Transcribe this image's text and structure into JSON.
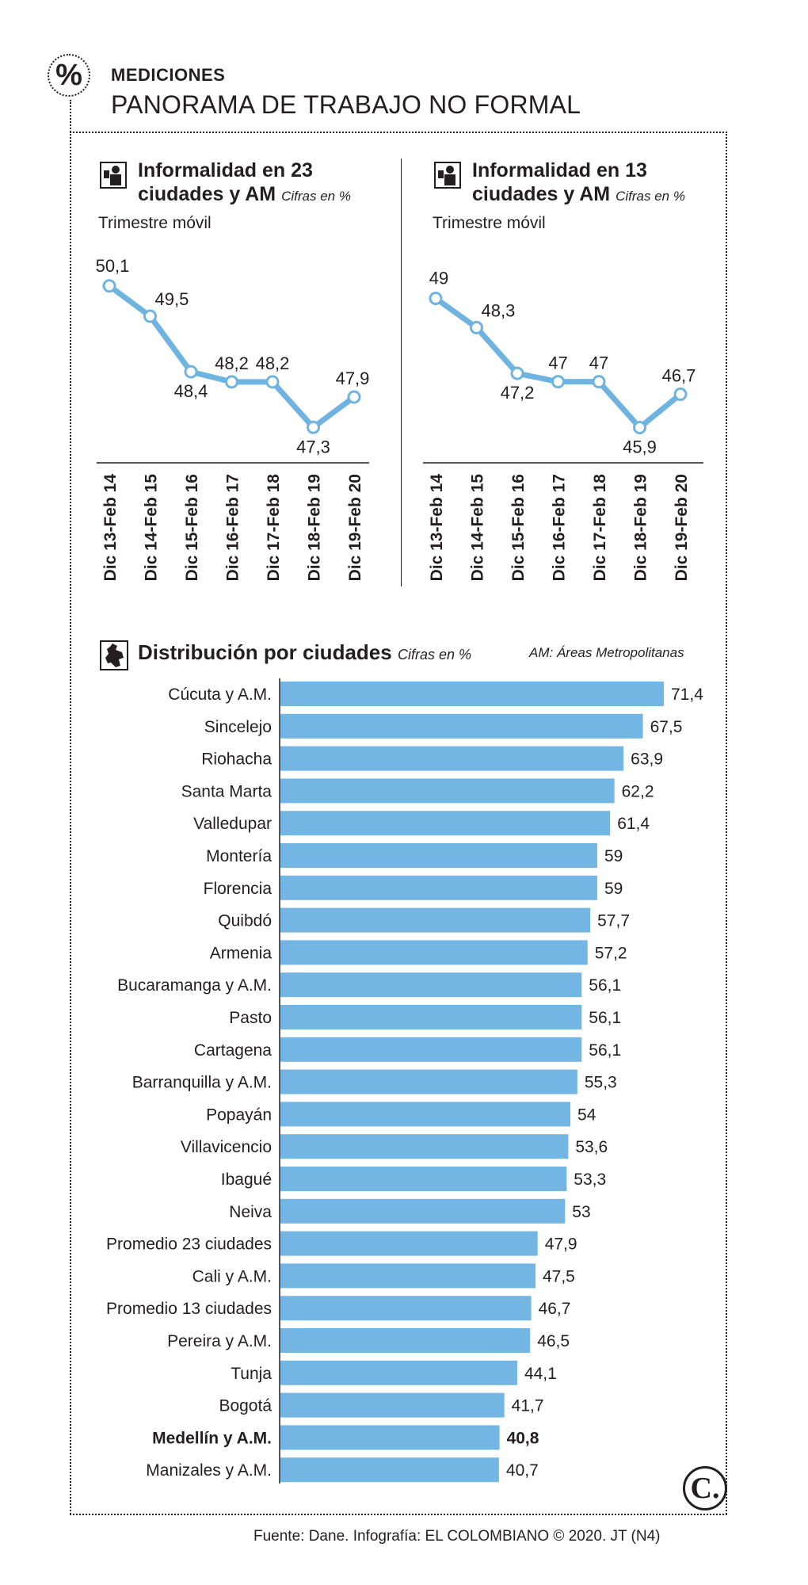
{
  "header": {
    "badge": "%",
    "kicker": "MEDICIONES",
    "headline": "PANORAMA DE TRABAJO NO FORMAL"
  },
  "colors": {
    "line": "#6fb3e0",
    "bar": "#74b6e3",
    "text": "#231f20"
  },
  "icons": {
    "line_chart_icon": "worker-icon",
    "bar_chart_icon": "colombia-map-icon",
    "logo": "el-colombiano-logo"
  },
  "chart_left": {
    "title_line1": "Informalidad en 23",
    "title_line2": "ciudades y AM",
    "unit_note": "Cifras en %",
    "caption": "Trimestre móvil"
  },
  "chart_right": {
    "title_line1": "Informalidad en 13",
    "title_line2": "ciudades y AM",
    "unit_note": "Cifras en %",
    "caption": "Trimestre móvil"
  },
  "distribution": {
    "title": "Distribución por ciudades",
    "unit_note": "Cifras en %",
    "am_note": "AM: Áreas Metropolitanas"
  },
  "footer": {
    "source": "Fuente: Dane. Infografía: EL COLOMBIANO © 2020. JT (N4)",
    "logo_letter": "C."
  },
  "chart_data": [
    {
      "type": "line",
      "title": "Informalidad en 23 ciudades y AM",
      "xlabel": "Trimestre móvil",
      "ylabel": "Cifras en %",
      "categories": [
        "Dic 13-Feb 14",
        "Dic 14-Feb 15",
        "Dic 15-Feb 16",
        "Dic 16-Feb 17",
        "Dic 17-Feb 18",
        "Dic 18-Feb 19",
        "Dic 19-Feb 20"
      ],
      "values": [
        50.1,
        49.5,
        48.4,
        48.2,
        48.2,
        47.3,
        47.9
      ],
      "labels": [
        "50,1",
        "49,5",
        "48,4",
        "48,2",
        "48,2",
        "47,3",
        "47,9"
      ],
      "label_pos": [
        "above",
        "right",
        "below",
        "above",
        "above",
        "below",
        "above"
      ],
      "ylim": [
        47.1,
        50.3
      ],
      "grid": false
    },
    {
      "type": "line",
      "title": "Informalidad en 13 ciudades y AM",
      "xlabel": "Trimestre móvil",
      "ylabel": "Cifras en %",
      "categories": [
        "Dic 13-Feb 14",
        "Dic 14-Feb 15",
        "Dic 15-Feb 16",
        "Dic 16-Feb 17",
        "Dic 17-Feb 18",
        "Dic 18-Feb 19",
        "Dic 19-Feb 20"
      ],
      "values": [
        49,
        48.3,
        47.2,
        47,
        47,
        45.9,
        46.7
      ],
      "labels": [
        "49",
        "48,3",
        "47,2",
        "47",
        "47",
        "45,9",
        "46,7"
      ],
      "label_pos": [
        "above",
        "right",
        "below",
        "above",
        "above",
        "below",
        "above"
      ],
      "ylim": [
        45.7,
        49.2
      ],
      "grid": false
    },
    {
      "type": "bar",
      "orientation": "horizontal",
      "title": "Distribución por ciudades",
      "ylabel": "Cifras en %",
      "categories": [
        "Cúcuta y A.M.",
        "Sincelejo",
        "Riohacha",
        "Santa Marta",
        "Valledupar",
        "Montería",
        "Florencia",
        "Quibdó",
        "Armenia",
        "Bucaramanga y A.M.",
        "Pasto",
        "Cartagena",
        "Barranquilla y A.M.",
        "Popayán",
        "Villavicencio",
        "Ibagué",
        "Neiva",
        "Promedio 23 ciudades",
        "Cali y A.M.",
        "Promedio 13 ciudades",
        "Pereira y A.M.",
        "Tunja",
        "Bogotá",
        "Medellín y A.M.",
        "Manizales y A.M."
      ],
      "values": [
        71.4,
        67.5,
        63.9,
        62.2,
        61.4,
        59,
        59,
        57.7,
        57.2,
        56.1,
        56.1,
        56.1,
        55.3,
        54,
        53.6,
        53.3,
        53,
        47.9,
        47.5,
        46.7,
        46.5,
        44.1,
        41.7,
        40.8,
        40.7
      ],
      "labels": [
        "71,4",
        "67,5",
        "63,9",
        "62,2",
        "61,4",
        "59",
        "59",
        "57,7",
        "57,2",
        "56,1",
        "56,1",
        "56,1",
        "55,3",
        "54",
        "53,6",
        "53,3",
        "53",
        "47,9",
        "47,5",
        "46,7",
        "46,5",
        "44,1",
        "41,7",
        "40,8",
        "40,7"
      ],
      "highlight": "Medellín y A.M.",
      "xlim": [
        0,
        71.4
      ]
    }
  ]
}
